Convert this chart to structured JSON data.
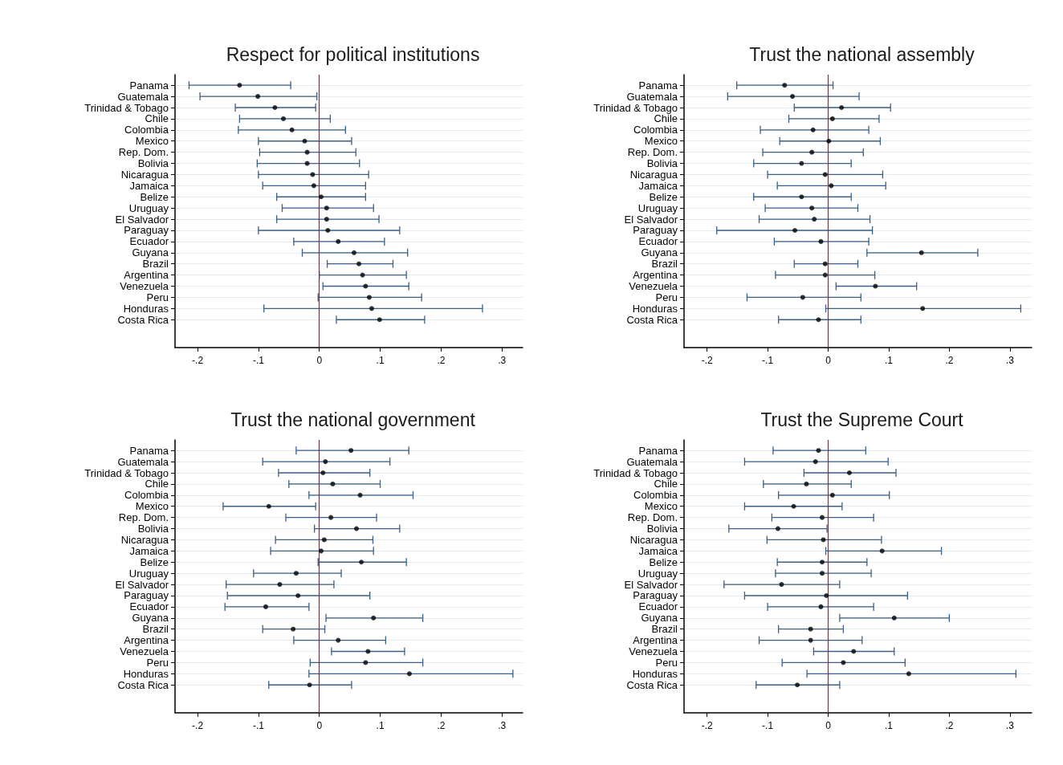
{
  "chart_data": [
    {
      "type": "scatter",
      "orientation": "horizontal",
      "title": "Respect for political institutions",
      "color": "#000000",
      "marker": "circle",
      "grid": "y",
      "categories": [
        "Panama",
        "Guatemala",
        "Trinidad & Tobago",
        "Chile",
        "Colombia",
        "Mexico",
        "Rep. Dom.",
        "Bolivia",
        "Nicaragua",
        "Jamaica",
        "Belize",
        "Uruguay",
        "El Salvador",
        "Paraguay",
        "Ecuador",
        "Guyana",
        "Brazil",
        "Argentina",
        "Venezuela",
        "Peru",
        "Honduras",
        "Costa Rica"
      ],
      "values": [
        -0.131,
        -0.101,
        -0.073,
        -0.059,
        -0.045,
        -0.024,
        -0.02,
        -0.02,
        -0.011,
        -0.009,
        0.003,
        0.012,
        0.012,
        0.014,
        0.031,
        0.057,
        0.065,
        0.071,
        0.076,
        0.082,
        0.086,
        0.099
      ],
      "errors": [
        [
          -0.214,
          -0.047
        ],
        [
          -0.196,
          -0.004
        ],
        [
          -0.138,
          -0.006
        ],
        [
          -0.131,
          0.018
        ],
        [
          -0.133,
          0.043
        ],
        [
          -0.1,
          0.053
        ],
        [
          -0.098,
          0.06
        ],
        [
          -0.102,
          0.066
        ],
        [
          -0.1,
          0.081
        ],
        [
          -0.093,
          0.076
        ],
        [
          -0.07,
          0.076
        ],
        [
          -0.061,
          0.089
        ],
        [
          -0.07,
          0.098
        ],
        [
          -0.1,
          0.132
        ],
        [
          -0.042,
          0.107
        ],
        [
          -0.028,
          0.145
        ],
        [
          0.013,
          0.121
        ],
        [
          0.0,
          0.143
        ],
        [
          0.006,
          0.147
        ],
        [
          -0.002,
          0.168
        ],
        [
          -0.091,
          0.268
        ],
        [
          0.028,
          0.173
        ]
      ],
      "xlim": [
        -0.237,
        0.334
      ],
      "xticks": [
        {
          "value": -0.2,
          "label": "-.2"
        },
        {
          "value": -0.1,
          "label": "-.1"
        },
        {
          "value": 0,
          "label": "0"
        },
        {
          "value": 0.1,
          "label": ".1"
        },
        {
          "value": 0.2,
          "label": ".2"
        },
        {
          "value": 0.3,
          "label": ".3"
        }
      ],
      "ref_lines": [
        {
          "axis": "x",
          "value": 0,
          "color": "#c8102e"
        }
      ]
    },
    {
      "type": "scatter",
      "orientation": "horizontal",
      "title": "Trust the national assembly",
      "color": "#000000",
      "marker": "circle",
      "grid": "y",
      "categories": [
        "Panama",
        "Guatemala",
        "Trinidad & Tobago",
        "Chile",
        "Colombia",
        "Mexico",
        "Rep. Dom.",
        "Bolivia",
        "Nicaragua",
        "Jamaica",
        "Belize",
        "Uruguay",
        "El Salvador",
        "Paraguay",
        "Ecuador",
        "Guyana",
        "Brazil",
        "Argentina",
        "Venezuela",
        "Peru",
        "Honduras",
        "Costa Rica"
      ],
      "values": [
        -0.072,
        -0.059,
        0.022,
        0.007,
        -0.025,
        0.001,
        -0.027,
        -0.044,
        -0.005,
        0.005,
        -0.044,
        -0.027,
        -0.023,
        -0.055,
        -0.012,
        0.154,
        -0.005,
        -0.005,
        0.078,
        -0.042,
        0.156,
        -0.016
      ],
      "errors": [
        [
          -0.151,
          0.008
        ],
        [
          -0.166,
          0.051
        ],
        [
          -0.056,
          0.103
        ],
        [
          -0.065,
          0.084
        ],
        [
          -0.112,
          0.067
        ],
        [
          -0.08,
          0.086
        ],
        [
          -0.108,
          0.058
        ],
        [
          -0.123,
          0.038
        ],
        [
          -0.1,
          0.09
        ],
        [
          -0.084,
          0.095
        ],
        [
          -0.123,
          0.038
        ],
        [
          -0.104,
          0.049
        ],
        [
          -0.114,
          0.069
        ],
        [
          -0.184,
          0.073
        ],
        [
          -0.089,
          0.067
        ],
        [
          0.064,
          0.247
        ],
        [
          -0.056,
          0.049
        ],
        [
          -0.087,
          0.077
        ],
        [
          0.013,
          0.146
        ],
        [
          -0.134,
          0.054
        ],
        [
          -0.004,
          0.318
        ],
        [
          -0.082,
          0.054
        ]
      ],
      "xlim": [
        -0.238,
        0.336
      ],
      "xticks": [
        {
          "value": -0.2,
          "label": "-.2"
        },
        {
          "value": -0.1,
          "label": "-.1"
        },
        {
          "value": 0,
          "label": "0"
        },
        {
          "value": 0.1,
          "label": ".1"
        },
        {
          "value": 0.2,
          "label": ".2"
        },
        {
          "value": 0.3,
          "label": ".3"
        }
      ],
      "ref_lines": [
        {
          "axis": "x",
          "value": 0,
          "color": "#c8102e"
        }
      ]
    },
    {
      "type": "scatter",
      "orientation": "horizontal",
      "title": "Trust the national government",
      "color": "#000000",
      "marker": "circle",
      "grid": "y",
      "categories": [
        "Panama",
        "Guatemala",
        "Trinidad & Tobago",
        "Chile",
        "Colombia",
        "Mexico",
        "Rep. Dom.",
        "Bolivia",
        "Nicaragua",
        "Jamaica",
        "Belize",
        "Uruguay",
        "El Salvador",
        "Paraguay",
        "Ecuador",
        "Guyana",
        "Brazil",
        "Argentina",
        "Venezuela",
        "Peru",
        "Honduras",
        "Costa Rica"
      ],
      "values": [
        0.052,
        0.01,
        0.006,
        0.022,
        0.067,
        -0.083,
        0.019,
        0.061,
        0.008,
        0.003,
        0.069,
        -0.038,
        -0.065,
        -0.035,
        -0.088,
        0.089,
        -0.043,
        0.031,
        0.08,
        0.076,
        0.148,
        -0.016
      ],
      "errors": [
        [
          -0.038,
          0.147
        ],
        [
          -0.093,
          0.116
        ],
        [
          -0.067,
          0.083
        ],
        [
          -0.05,
          0.1
        ],
        [
          -0.017,
          0.154
        ],
        [
          -0.158,
          -0.006
        ],
        [
          -0.055,
          0.094
        ],
        [
          -0.008,
          0.132
        ],
        [
          -0.072,
          0.088
        ],
        [
          -0.08,
          0.089
        ],
        [
          -0.002,
          0.143
        ],
        [
          -0.108,
          0.036
        ],
        [
          -0.153,
          0.024
        ],
        [
          -0.151,
          0.083
        ],
        [
          -0.155,
          -0.017
        ],
        [
          0.011,
          0.17
        ],
        [
          -0.093,
          0.009
        ],
        [
          -0.042,
          0.109
        ],
        [
          0.02,
          0.14
        ],
        [
          -0.015,
          0.17
        ],
        [
          -0.017,
          0.318
        ],
        [
          -0.083,
          0.053
        ]
      ],
      "xlim": [
        -0.237,
        0.334
      ],
      "xticks": [
        {
          "value": -0.2,
          "label": "-.2"
        },
        {
          "value": -0.1,
          "label": "-.1"
        },
        {
          "value": 0,
          "label": "0"
        },
        {
          "value": 0.1,
          "label": ".1"
        },
        {
          "value": 0.2,
          "label": ".2"
        },
        {
          "value": 0.3,
          "label": ".3"
        }
      ],
      "ref_lines": [
        {
          "axis": "x",
          "value": 0,
          "color": "#c8102e"
        }
      ]
    },
    {
      "type": "scatter",
      "orientation": "horizontal",
      "title": "Trust the Supreme Court",
      "color": "#000000",
      "marker": "circle",
      "grid": "y",
      "categories": [
        "Panama",
        "Guatemala",
        "Trinidad & Tobago",
        "Chile",
        "Colombia",
        "Mexico",
        "Rep. Dom.",
        "Bolivia",
        "Nicaragua",
        "Jamaica",
        "Belize",
        "Uruguay",
        "El Salvador",
        "Paraguay",
        "Ecuador",
        "Guyana",
        "Brazil",
        "Argentina",
        "Venezuela",
        "Peru",
        "Honduras",
        "Costa Rica"
      ],
      "values": [
        -0.016,
        -0.021,
        0.035,
        -0.036,
        0.007,
        -0.057,
        -0.01,
        -0.083,
        -0.008,
        0.089,
        -0.01,
        -0.01,
        -0.077,
        -0.003,
        -0.012,
        0.109,
        -0.029,
        -0.029,
        0.042,
        0.025,
        0.133,
        -0.051
      ],
      "errors": [
        [
          -0.091,
          0.062
        ],
        [
          -0.138,
          0.099
        ],
        [
          -0.04,
          0.112
        ],
        [
          -0.107,
          0.038
        ],
        [
          -0.082,
          0.101
        ],
        [
          -0.138,
          0.023
        ],
        [
          -0.093,
          0.075
        ],
        [
          -0.164,
          -0.002
        ],
        [
          -0.101,
          0.088
        ],
        [
          -0.004,
          0.187
        ],
        [
          -0.084,
          0.064
        ],
        [
          -0.087,
          0.071
        ],
        [
          -0.172,
          0.019
        ],
        [
          -0.138,
          0.131
        ],
        [
          -0.1,
          0.075
        ],
        [
          0.019,
          0.2
        ],
        [
          -0.082,
          0.025
        ],
        [
          -0.114,
          0.056
        ],
        [
          -0.024,
          0.109
        ],
        [
          -0.076,
          0.127
        ],
        [
          -0.035,
          0.31
        ],
        [
          -0.119,
          0.019
        ]
      ],
      "xlim": [
        -0.238,
        0.336
      ],
      "xticks": [
        {
          "value": -0.2,
          "label": "-.2"
        },
        {
          "value": -0.1,
          "label": "-.1"
        },
        {
          "value": 0,
          "label": "0"
        },
        {
          "value": 0.1,
          "label": ".1"
        },
        {
          "value": 0.2,
          "label": ".2"
        },
        {
          "value": 0.3,
          "label": ".3"
        }
      ],
      "ref_lines": [
        {
          "axis": "x",
          "value": 0,
          "color": "#c8102e"
        }
      ]
    }
  ]
}
